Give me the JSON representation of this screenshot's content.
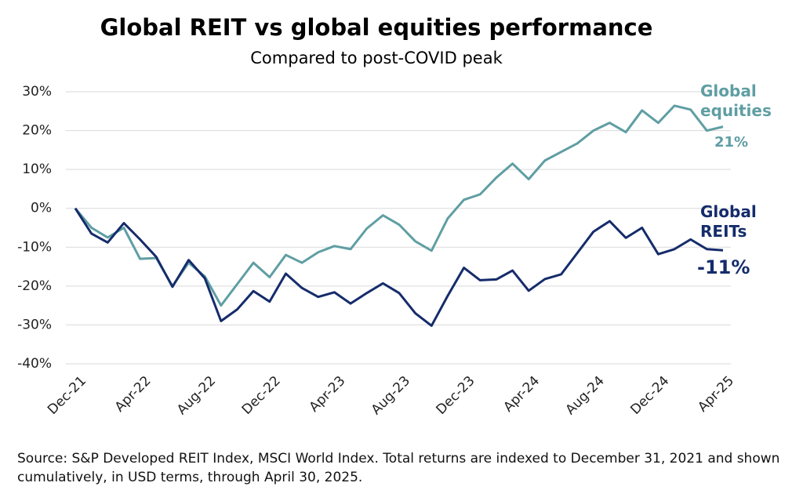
{
  "chart_data": {
    "type": "line",
    "title": "Global REIT vs global equities performance",
    "subtitle": "Compared to post-COVID peak",
    "source": "Source: S&P Developed REIT Index, MSCI World Index. Total returns are indexed to December 31, 2021 and shown cumulatively, in USD terms, through April 30, 2025.",
    "categories": [
      "Dec-21",
      null,
      null,
      null,
      "Apr-22",
      null,
      null,
      null,
      "Aug-22",
      null,
      null,
      null,
      "Dec-22",
      null,
      null,
      null,
      "Apr-23",
      null,
      null,
      null,
      "Aug-23",
      null,
      null,
      null,
      "Dec-23",
      null,
      null,
      null,
      "Apr-24",
      null,
      null,
      null,
      "Aug-24",
      null,
      null,
      null,
      "Dec-24",
      null,
      null,
      null,
      "Apr-25"
    ],
    "series": [
      {
        "name": "Global equities",
        "color": "#5f9ea3",
        "end_label": "21%",
        "values": [
          0,
          -5,
          -7.5,
          -5,
          -13,
          -12.8,
          -20,
          -14,
          -17.5,
          -25,
          -19.5,
          -14,
          -17.7,
          -12,
          -14,
          -11.3,
          -9.7,
          -10.5,
          -5.2,
          -1.8,
          -4.2,
          -8.5,
          -10.9,
          -2.6,
          2.2,
          3.6,
          7.9,
          11.5,
          7.5,
          12.3,
          14.5,
          16.7,
          20,
          22,
          19.6,
          25.2,
          22,
          26.4,
          25.4,
          20,
          21
        ]
      },
      {
        "name": "Global REITs",
        "color": "#152c6b",
        "end_label": "-11%",
        "values": [
          0,
          -6.5,
          -8.8,
          -3.8,
          -8,
          -12.5,
          -20.2,
          -13.3,
          -18,
          -29,
          -26,
          -21.3,
          -24,
          -16.8,
          -20.5,
          -22.8,
          -21.6,
          -24.5,
          -21.8,
          -19.3,
          -21.8,
          -27,
          -30.2,
          -22.5,
          -15.3,
          -18.5,
          -18.3,
          -16,
          -21.2,
          -18.2,
          -17,
          -11.5,
          -6,
          -3.3,
          -7.6,
          -5,
          -11.8,
          -10.5,
          -8,
          -10.5,
          -10.8
        ]
      }
    ],
    "ylim": [
      -40,
      30
    ],
    "yticks": [
      {
        "value": -40,
        "label": "-40%"
      },
      {
        "value": -30,
        "label": "-30%"
      },
      {
        "value": -20,
        "label": "-20%"
      },
      {
        "value": -10,
        "label": "-10%"
      },
      {
        "value": 0,
        "label": "0%"
      },
      {
        "value": 10,
        "label": "10%"
      },
      {
        "value": 20,
        "label": "20%"
      },
      {
        "value": 30,
        "label": "30%"
      }
    ],
    "grid": true
  }
}
